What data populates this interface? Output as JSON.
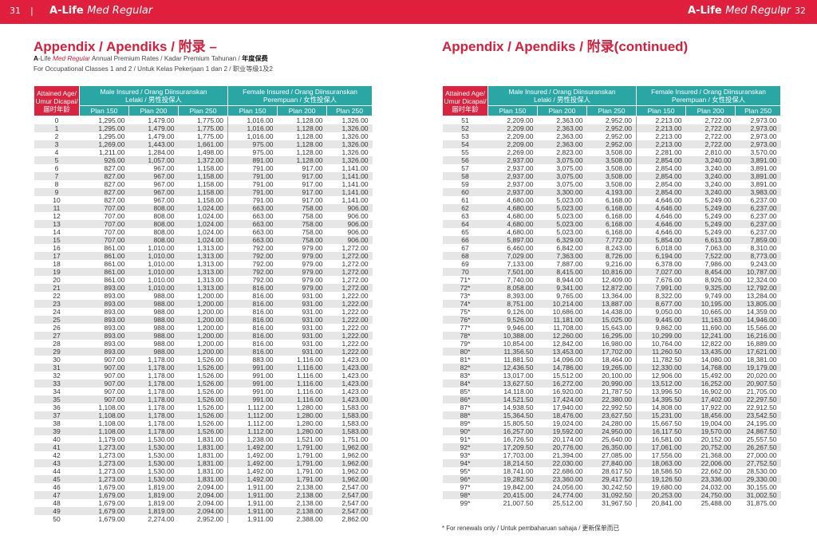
{
  "header": {
    "left_page_number": "31",
    "left_divider": "|",
    "right_page_number": "32",
    "right_divider": "|",
    "brand_prefix": "A",
    "brand_life": "-Life ",
    "brand_product": "Med Regular"
  },
  "left_page": {
    "title": "Appendix / Apendiks / 附录 –",
    "subtitle_1": {
      "brand_a": "A",
      "brand_life": "-Life ",
      "brand_product": "Med Regular",
      "rest": "  Annual Premium Rates / Kadar Premium Tahunan / ",
      "chinese": "年度保费"
    },
    "subtitle_2": "For Occupational Classes 1 and 2 / Untuk Kelas Pekerjaan 1 dan 2 / 职业等级1及2"
  },
  "right_page": {
    "title": "Appendix / Apendiks / 附录(continued)",
    "footnote": "* For renewals only / Untuk pembaharuan sahaja / 更新保单而已"
  },
  "table_header": {
    "age_line1": "Attained Age/",
    "age_line2": "Umur Dicapai/",
    "age_line3": "届时年龄",
    "male_line1": "Male Insured / Orang Diinsuranskan",
    "male_line2": "Lelaki / 男性投保人",
    "female_line1": "Female Insured / Orang Diinsuranskan",
    "female_line2": "Perempuan / 女性投保人",
    "plans": [
      "Plan  150",
      "Plan  200",
      "Plan  250",
      "Plan  150",
      "Plan  200",
      "Plan  250"
    ]
  },
  "table_left": [
    [
      "0",
      "1,295.00",
      "1,479.00",
      "1,775.00",
      "1,016.00",
      "1,128.00",
      "1,326.00"
    ],
    [
      "1",
      "1,295.00",
      "1,479.00",
      "1,775.00",
      "1,016.00",
      "1,128.00",
      "1,326.00"
    ],
    [
      "2",
      "1,295.00",
      "1,479.00",
      "1,775.00",
      "1,016.00",
      "1,128.00",
      "1,326.00"
    ],
    [
      "3",
      "1,269.00",
      "1,443.00",
      "1,661.00",
      "975.00",
      "1,128.00",
      "1,326.00"
    ],
    [
      "4",
      "1,211.00",
      "1,284.00",
      "1,498.00",
      "975.00",
      "1,128.00",
      "1,326.00"
    ],
    [
      "5",
      "926.00",
      "1,057.00",
      "1,372.00",
      "891.00",
      "1,128.00",
      "1,326.00"
    ],
    [
      "6",
      "827.00",
      "967.00",
      "1,158.00",
      "791.00",
      "917.00",
      "1,141.00"
    ],
    [
      "7",
      "827.00",
      "967.00",
      "1,158.00",
      "791.00",
      "917.00",
      "1,141.00"
    ],
    [
      "8",
      "827.00",
      "967.00",
      "1,158.00",
      "791.00",
      "917.00",
      "1,141.00"
    ],
    [
      "9",
      "827.00",
      "967.00",
      "1,158.00",
      "791.00",
      "917.00",
      "1,141.00"
    ],
    [
      "10",
      "827.00",
      "967.00",
      "1,158.00",
      "791.00",
      "917.00",
      "1,141.00"
    ],
    [
      "11",
      "707.00",
      "808.00",
      "1,024.00",
      "663.00",
      "758.00",
      "906.00"
    ],
    [
      "12",
      "707.00",
      "808.00",
      "1,024.00",
      "663.00",
      "758.00",
      "906.00"
    ],
    [
      "13",
      "707.00",
      "808.00",
      "1,024.00",
      "663.00",
      "758.00",
      "906.00"
    ],
    [
      "14",
      "707.00",
      "808.00",
      "1,024.00",
      "663.00",
      "758.00",
      "906.00"
    ],
    [
      "15",
      "707.00",
      "808.00",
      "1,024.00",
      "663.00",
      "758.00",
      "906.00"
    ],
    [
      "16",
      "861.00",
      "1,010.00",
      "1,313.00",
      "792.00",
      "979.00",
      "1,272.00"
    ],
    [
      "17",
      "861.00",
      "1,010.00",
      "1,313.00",
      "792.00",
      "979.00",
      "1,272.00"
    ],
    [
      "18",
      "861.00",
      "1,010.00",
      "1,313.00",
      "792.00",
      "979.00",
      "1,272.00"
    ],
    [
      "19",
      "861.00",
      "1,010.00",
      "1,313.00",
      "792.00",
      "979.00",
      "1,272.00"
    ],
    [
      "20",
      "861.00",
      "1,010.00",
      "1,313.00",
      "792.00",
      "979.00",
      "1,272.00"
    ],
    [
      "21",
      "893.00",
      "1,010.00",
      "1,313.00",
      "816.00",
      "979.00",
      "1,272.00"
    ],
    [
      "22",
      "893.00",
      "988.00",
      "1,200.00",
      "816.00",
      "931.00",
      "1,222.00"
    ],
    [
      "23",
      "893.00",
      "988.00",
      "1,200.00",
      "816.00",
      "931.00",
      "1,222.00"
    ],
    [
      "24",
      "893.00",
      "988.00",
      "1,200.00",
      "816.00",
      "931.00",
      "1,222.00"
    ],
    [
      "25",
      "893.00",
      "988.00",
      "1,200.00",
      "816.00",
      "931.00",
      "1,222.00"
    ],
    [
      "26",
      "893.00",
      "988.00",
      "1,200.00",
      "816.00",
      "931.00",
      "1,222.00"
    ],
    [
      "27",
      "893.00",
      "988.00",
      "1,200.00",
      "816.00",
      "931.00",
      "1,222.00"
    ],
    [
      "28",
      "893.00",
      "988.00",
      "1,200.00",
      "816.00",
      "931.00",
      "1,222.00"
    ],
    [
      "29",
      "893.00",
      "988.00",
      "1,200.00",
      "816.00",
      "931.00",
      "1,222.00"
    ],
    [
      "30",
      "907.00",
      "1,178.00",
      "1,526.00",
      "883.00",
      "1,116.00",
      "1,423.00"
    ],
    [
      "31",
      "907.00",
      "1,178.00",
      "1,526.00",
      "991.00",
      "1,116.00",
      "1,423.00"
    ],
    [
      "32",
      "907.00",
      "1,178.00",
      "1,526.00",
      "991.00",
      "1,116.00",
      "1,423.00"
    ],
    [
      "33",
      "907.00",
      "1,178.00",
      "1,526.00",
      "991.00",
      "1,116.00",
      "1,423.00"
    ],
    [
      "34",
      "907.00",
      "1,178.00",
      "1,526.00",
      "991.00",
      "1,116.00",
      "1,423.00"
    ],
    [
      "35",
      "907.00",
      "1,178.00",
      "1,526.00",
      "991.00",
      "1,116.00",
      "1,423.00"
    ],
    [
      "36",
      "1,108.00",
      "1,178.00",
      "1,526.00",
      "1,112.00",
      "1,280.00",
      "1,583.00"
    ],
    [
      "37",
      "1,108.00",
      "1,178.00",
      "1,526.00",
      "1,112.00",
      "1,280.00",
      "1,583.00"
    ],
    [
      "38",
      "1,108.00",
      "1,178.00",
      "1,526.00",
      "1,112.00",
      "1,280.00",
      "1,583.00"
    ],
    [
      "39",
      "1,108.00",
      "1,178.00",
      "1,526.00",
      "1,112.00",
      "1,280.00",
      "1,583.00"
    ],
    [
      "40",
      "1,179.00",
      "1,530.00",
      "1,831.00",
      "1,238.00",
      "1,521.00",
      "1,751.00"
    ],
    [
      "41",
      "1,273.00",
      "1,530.00",
      "1,831.00",
      "1,492.00",
      "1,791.00",
      "1,962.00"
    ],
    [
      "42",
      "1,273.00",
      "1,530.00",
      "1,831.00",
      "1,492.00",
      "1,791.00",
      "1,962.00"
    ],
    [
      "43",
      "1,273.00",
      "1,530.00",
      "1,831.00",
      "1,492.00",
      "1,791.00",
      "1,962.00"
    ],
    [
      "44",
      "1,273.00",
      "1,530.00",
      "1,831.00",
      "1,492.00",
      "1,791.00",
      "1,962.00"
    ],
    [
      "45",
      "1,273.00",
      "1,530.00",
      "1,831.00",
      "1,492.00",
      "1,791.00",
      "1,962.00"
    ],
    [
      "46",
      "1,679.00",
      "1,819.00",
      "2,094.00",
      "1,911.00",
      "2,138.00",
      "2,547.00"
    ],
    [
      "47",
      "1,679.00",
      "1,819.00",
      "2,094.00",
      "1,911.00",
      "2,138.00",
      "2,547.00"
    ],
    [
      "48",
      "1,679.00",
      "1,819.00",
      "2,094.00",
      "1,911.00",
      "2,138.00",
      "2,547.00"
    ],
    [
      "49",
      "1,679.00",
      "1,819.00",
      "2,094.00",
      "1,911.00",
      "2,138.00",
      "2,547.00"
    ],
    [
      "50",
      "1,679.00",
      "2,274.00",
      "2,952.00",
      "1,911.00",
      "2,388.00",
      "2,862.00"
    ]
  ],
  "table_right": [
    [
      "51",
      "2,209.00",
      "2,363.00",
      "2,952.00",
      "2,213.00",
      "2,722.00",
      "2,973.00"
    ],
    [
      "52",
      "2,209.00",
      "2,363.00",
      "2,952.00",
      "2,213.00",
      "2,722.00",
      "2,973.00"
    ],
    [
      "53",
      "2,209.00",
      "2,363.00",
      "2,952.00",
      "2,213.00",
      "2,722.00",
      "2,973.00"
    ],
    [
      "54",
      "2,209.00",
      "2,363.00",
      "2,952.00",
      "2,213.00",
      "2,722.00",
      "2,973.00"
    ],
    [
      "55",
      "2,269.00",
      "2,823.00",
      "3,508.00",
      "2,281.00",
      "2,810.00",
      "3,570.00"
    ],
    [
      "56",
      "2,937.00",
      "3,075.00",
      "3,508.00",
      "2,854.00",
      "3,240.00",
      "3,891.00"
    ],
    [
      "57",
      "2,937.00",
      "3,075.00",
      "3,508.00",
      "2,854.00",
      "3,240.00",
      "3,891.00"
    ],
    [
      "58",
      "2,937.00",
      "3,075.00",
      "3,508.00",
      "2,854.00",
      "3,240.00",
      "3,891.00"
    ],
    [
      "59",
      "2,937.00",
      "3,075.00",
      "3,508.00",
      "2,854.00",
      "3,240.00",
      "3,891.00"
    ],
    [
      "60",
      "2,937.00",
      "3,300.00",
      "4,193.00",
      "2,854.00",
      "3,240.00",
      "3,983.00"
    ],
    [
      "61",
      "4,680.00",
      "5,023.00",
      "6,168.00",
      "4,646.00",
      "5,249.00",
      "6,237.00"
    ],
    [
      "62",
      "4,680.00",
      "5,023.00",
      "6,168.00",
      "4,646.00",
      "5,249.00",
      "6,237.00"
    ],
    [
      "63",
      "4,680.00",
      "5,023.00",
      "6,168.00",
      "4,646.00",
      "5,249.00",
      "6,237.00"
    ],
    [
      "64",
      "4,680.00",
      "5,023.00",
      "6,168.00",
      "4,646.00",
      "5,249.00",
      "6,237.00"
    ],
    [
      "65",
      "4,680.00",
      "5,023.00",
      "6,168.00",
      "4,646.00",
      "5,249.00",
      "6,237.00"
    ],
    [
      "66",
      "5,897.00",
      "6,329.00",
      "7,772.00",
      "5,854.00",
      "6,613.00",
      "7,859.00"
    ],
    [
      "67",
      "6,460.00",
      "6,842.00",
      "8,243.00",
      "6,018.00",
      "7,063.00",
      "8,310.00"
    ],
    [
      "68",
      "7,029.00",
      "7,363.00",
      "8,726.00",
      "6,194.00",
      "7,522.00",
      "8,773.00"
    ],
    [
      "69",
      "7,133.00",
      "7,887.00",
      "9,216.00",
      "6,378.00",
      "7,986.00",
      "9,243.00"
    ],
    [
      "70",
      "7,501.00",
      "8,415.00",
      "10,816.00",
      "7,027.00",
      "8,454.00",
      "10,787.00"
    ],
    [
      "71*",
      "7,740.00",
      "8,944.00",
      "12,409.00",
      "7,676.00",
      "8,926.00",
      "12,324.00"
    ],
    [
      "72*",
      "8,058.00",
      "9,341.00",
      "12,872.00",
      "7,991.00",
      "9,325.00",
      "12,792.00"
    ],
    [
      "73*",
      "8,393.00",
      "9,765.00",
      "13,364.00",
      "8,322.00",
      "9,749.00",
      "13,284.00"
    ],
    [
      "74*",
      "8,751.00",
      "10,214.00",
      "13,887.00",
      "8,677.00",
      "10,195.00",
      "13,805.00"
    ],
    [
      "75*",
      "9,126.00",
      "10,686.00",
      "14,438.00",
      "9,050.00",
      "10,665.00",
      "14,359.00"
    ],
    [
      "76*",
      "9,526.00",
      "11,181.00",
      "15,025.00",
      "9,445.00",
      "11,163.00",
      "14,946.00"
    ],
    [
      "77*",
      "9,946.00",
      "11,708.00",
      "15,643.00",
      "9,862.00",
      "11,690.00",
      "15,566.00"
    ],
    [
      "78*",
      "10,388.00",
      "12,260.00",
      "16,295.00",
      "10,299.00",
      "12,241.00",
      "16,216.00"
    ],
    [
      "79*",
      "10,854.00",
      "12,842.00",
      "16,980.00",
      "10,764.00",
      "12,822.00",
      "16,889.00"
    ],
    [
      "80*",
      "11,356.50",
      "13,453.00",
      "17,702.00",
      "11,260.50",
      "13,435.00",
      "17,621.00"
    ],
    [
      "81*",
      "11,881.50",
      "14,096.00",
      "18,464.00",
      "11,782.50",
      "14,080.00",
      "18,381.00"
    ],
    [
      "82*",
      "12,436.50",
      "14,786.00",
      "19,265.00",
      "12,330.00",
      "14,768.00",
      "19,179.00"
    ],
    [
      "83*",
      "13,017.00",
      "15,512.00",
      "20,100.00",
      "12,906.00",
      "15,492.00",
      "20,020.00"
    ],
    [
      "84*",
      "13,627.50",
      "16,272.00",
      "20,990.00",
      "13,512.00",
      "16,252.00",
      "20,907.50"
    ],
    [
      "85*",
      "14,118.00",
      "16,920.00",
      "21,787.50",
      "13,996.50",
      "16,902.00",
      "21,705.00"
    ],
    [
      "86*",
      "14,521.50",
      "17,424.00",
      "22,380.00",
      "14,395.50",
      "17,402.00",
      "22,297.50"
    ],
    [
      "87*",
      "14,938.50",
      "17,940.00",
      "22,992.50",
      "14,808.00",
      "17,922.00",
      "22,912.50"
    ],
    [
      "88*",
      "15,364.50",
      "18,476.00",
      "23,627.50",
      "15,231.00",
      "18,456.00",
      "23,542.50"
    ],
    [
      "89*",
      "15,805.50",
      "19,024.00",
      "24,280.00",
      "15,667.50",
      "19,004.00",
      "24,195.00"
    ],
    [
      "90*",
      "16,257.00",
      "19,592.00",
      "24,950.00",
      "16,117.50",
      "19,570.00",
      "24,867.50"
    ],
    [
      "91*",
      "16,726.50",
      "20,174.00",
      "25,640.00",
      "16,581.00",
      "20,152.00",
      "25,557.50"
    ],
    [
      "92*",
      "17,209.50",
      "20,776.00",
      "26,350.00",
      "17,061.00",
      "20,752.00",
      "26,267.50"
    ],
    [
      "93*",
      "17,703.00",
      "21,394.00",
      "27,085.00",
      "17,556.00",
      "21,368.00",
      "27,000.00"
    ],
    [
      "94*",
      "18,214.50",
      "22,030.00",
      "27,840.00",
      "18,063.00",
      "22,006.00",
      "27,752.50"
    ],
    [
      "95*",
      "18,741.00",
      "22,686.00",
      "28,617.50",
      "18,586.50",
      "22,662.00",
      "28,530.00"
    ],
    [
      "96*",
      "19,282.50",
      "23,360.00",
      "29,417.50",
      "19,126.50",
      "23,336.00",
      "29,330.00"
    ],
    [
      "97*",
      "19,842.00",
      "24,056.00",
      "30,242.50",
      "19,680.00",
      "24,032.00",
      "30,155.00"
    ],
    [
      "98*",
      "20,415.00",
      "24,774.00",
      "31,092.50",
      "20,253.00",
      "24,750.00",
      "31,002.50"
    ],
    [
      "99*",
      "21,007.50",
      "25,512.00",
      "31,967.50",
      "20,841.00",
      "25,488.00",
      "31,875.00"
    ]
  ]
}
